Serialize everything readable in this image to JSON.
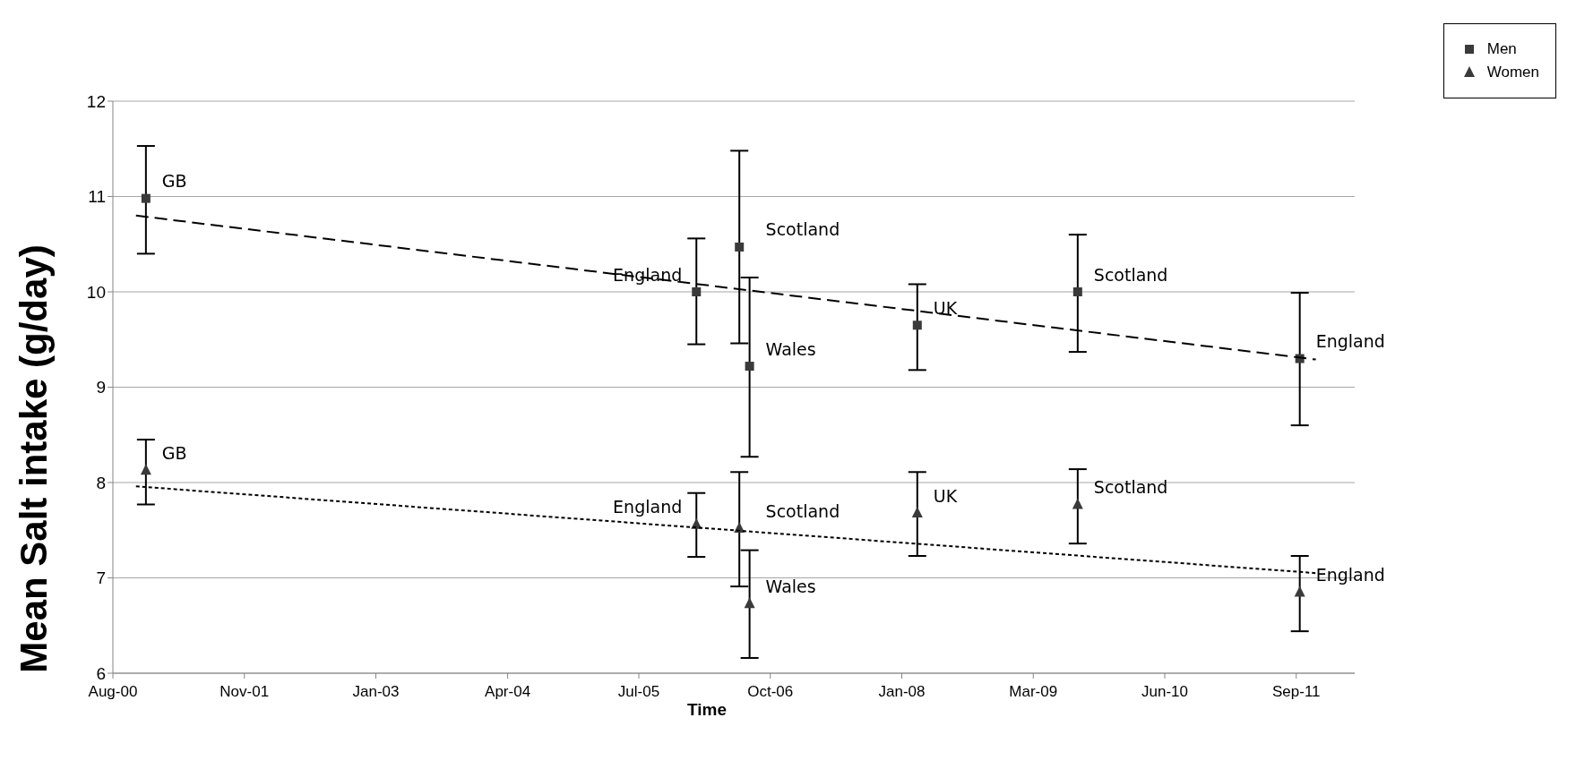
{
  "chart_data": {
    "type": "scatter",
    "xlabel": "Time",
    "ylabel": "Mean Salt intake (g/day)",
    "xlim": [
      "2000-08-10",
      "2012-03-30"
    ],
    "xticks": [
      {
        "value": "2000-08-10",
        "label": "Aug-00"
      },
      {
        "value": "2001-11-03",
        "label": "Nov-01"
      },
      {
        "value": "2003-01-27",
        "label": "Jan-03"
      },
      {
        "value": "2004-04-22",
        "label": "Apr-04"
      },
      {
        "value": "2005-07-15",
        "label": "Jul-05"
      },
      {
        "value": "2006-10-08",
        "label": "Oct-06"
      },
      {
        "value": "2008-01-01",
        "label": "Jan-08"
      },
      {
        "value": "2009-03-26",
        "label": "Mar-09"
      },
      {
        "value": "2010-06-19",
        "label": "Jun-10"
      },
      {
        "value": "2011-09-12",
        "label": "Sep-11"
      }
    ],
    "ylim": [
      6,
      12
    ],
    "yticks": [
      6,
      7,
      8,
      9,
      10,
      11,
      12
    ],
    "grid": "y",
    "legend": "top right",
    "series": [
      {
        "name": "Men",
        "marker": "square",
        "color": "#3a3a3a",
        "x": [
          "2000-12-01",
          "2006-01-28",
          "2006-06-24",
          "2006-07-29",
          "2008-02-23",
          "2009-08-25",
          "2011-09-24"
        ],
        "values": [
          10.98,
          10.0,
          10.47,
          9.22,
          9.65,
          10.0,
          9.3
        ],
        "errors": [
          [
            10.4,
            11.53
          ],
          [
            9.45,
            10.56
          ],
          [
            9.46,
            11.48
          ],
          [
            8.27,
            10.15
          ],
          [
            9.18,
            10.08
          ],
          [
            9.37,
            10.6
          ],
          [
            8.6,
            9.99
          ]
        ]
      },
      {
        "name": "Women",
        "marker": "triangle",
        "color": "#3a3a3a",
        "x": [
          "2000-12-01",
          "2006-01-28",
          "2006-06-24",
          "2006-07-29",
          "2008-02-23",
          "2009-08-25",
          "2011-09-24"
        ],
        "values": [
          8.13,
          7.56,
          7.52,
          6.73,
          7.68,
          7.77,
          6.85
        ],
        "errors": [
          [
            7.77,
            8.45
          ],
          [
            7.22,
            7.89
          ],
          [
            6.91,
            8.11
          ],
          [
            6.16,
            7.29
          ],
          [
            7.23,
            8.11
          ],
          [
            7.36,
            8.14
          ],
          [
            6.44,
            7.23
          ]
        ]
      },
      {
        "type": "line",
        "color": "#000000",
        "line_style": "dashed",
        "x": [
          "2000-10-28",
          "2011-11-18"
        ],
        "values": [
          10.8,
          9.29
        ]
      },
      {
        "type": "line",
        "color": "#000000",
        "line_style": "dotted",
        "x": [
          "2000-10-28",
          "2011-11-18"
        ],
        "values": [
          7.96,
          7.05
        ]
      }
    ],
    "annotations": [
      {
        "text": "GB",
        "x": "2000-12-01",
        "y": 10.98
      },
      {
        "text": "England",
        "x": "2006-01-28",
        "y": 10.0
      },
      {
        "text": "Scotland",
        "x": "2006-06-24",
        "y": 10.47
      },
      {
        "text": "Wales",
        "x": "2006-07-29",
        "y": 9.22
      },
      {
        "text": "UK",
        "x": "2008-02-23",
        "y": 9.65
      },
      {
        "text": "Scotland",
        "x": "2009-08-25",
        "y": 10.0
      },
      {
        "text": "England",
        "x": "2011-09-24",
        "y": 9.3
      },
      {
        "text": "GB",
        "x": "2000-12-01",
        "y": 8.13
      },
      {
        "text": "England",
        "x": "2006-01-28",
        "y": 7.56
      },
      {
        "text": "Scotland",
        "x": "2006-06-24",
        "y": 7.52
      },
      {
        "text": "Wales",
        "x": "2006-07-29",
        "y": 6.73
      },
      {
        "text": "UK",
        "x": "2008-02-23",
        "y": 7.68
      },
      {
        "text": "Scotland",
        "x": "2009-08-25",
        "y": 7.77
      },
      {
        "text": "England",
        "x": "2011-09-24",
        "y": 6.85
      }
    ]
  }
}
